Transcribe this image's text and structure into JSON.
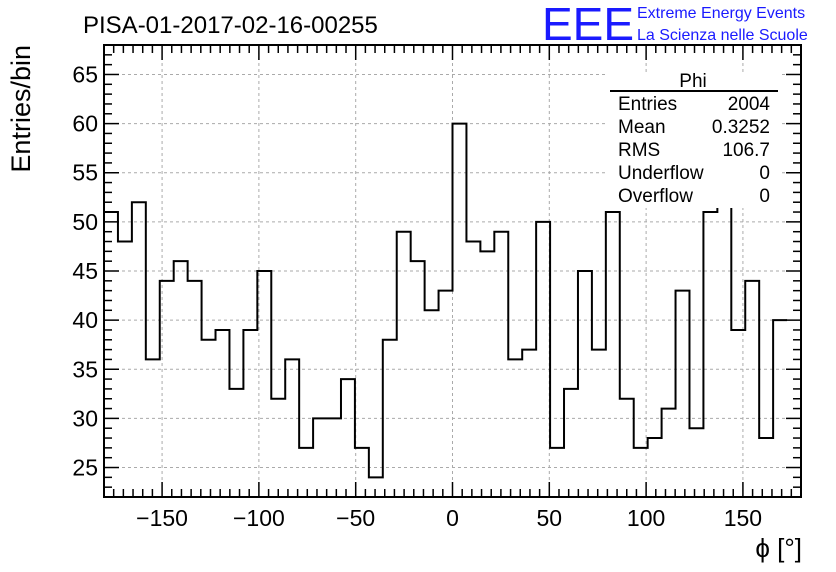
{
  "chart_data": {
    "type": "histogram",
    "title": "PISA-01-2017-02-16-00255",
    "xlabel": "ϕ [°]",
    "ylabel": "Entries/bin",
    "xlim": [
      -180,
      180
    ],
    "ylim": [
      22,
      68
    ],
    "grid": true,
    "bin_width": 7.2,
    "x_ticks": [
      -150,
      -100,
      -50,
      0,
      50,
      100,
      150
    ],
    "x_tick_labels": [
      "−150",
      "−100",
      "−50",
      "0",
      "50",
      "100",
      "150"
    ],
    "y_ticks": [
      25,
      30,
      35,
      40,
      45,
      50,
      55,
      60,
      65
    ],
    "y_tick_labels": [
      "25",
      "30",
      "35",
      "40",
      "45",
      "50",
      "55",
      "60",
      "65"
    ],
    "values": [
      51,
      48,
      52,
      36,
      44,
      46,
      44,
      38,
      39,
      33,
      39,
      45,
      32,
      36,
      27,
      30,
      30,
      34,
      27,
      24,
      38,
      49,
      46,
      41,
      43,
      60,
      48,
      47,
      49,
      36,
      37,
      50,
      27,
      33,
      45,
      37,
      51,
      32,
      27,
      28,
      31,
      43,
      29,
      51,
      54,
      39,
      44,
      28,
      40
    ],
    "color": "#000000",
    "stats_box": {
      "title": "Phi",
      "rows": [
        {
          "label": "Entries",
          "value": "2004"
        },
        {
          "label": "Mean",
          "value": "0.3252"
        },
        {
          "label": "RMS",
          "value": "106.7"
        },
        {
          "label": "Underflow",
          "value": "0"
        },
        {
          "label": "Overflow",
          "value": "0"
        }
      ]
    }
  },
  "logo": {
    "mark": "EEE",
    "line1": "Extreme Energy Events",
    "line2": "La Scienza nelle Scuole",
    "color": "#1a1aff"
  }
}
